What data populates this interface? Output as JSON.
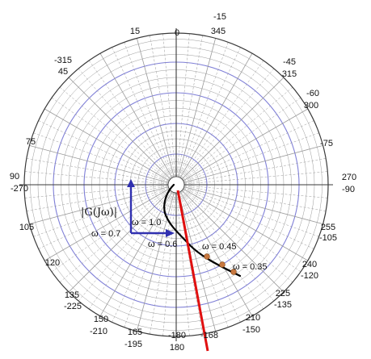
{
  "plot": {
    "angle_labels": [
      {
        "key": "0",
        "text": "0"
      },
      {
        "key": "15",
        "text": "15"
      },
      {
        "key": "n15",
        "text": "-15"
      },
      {
        "key": "345",
        "text": "345"
      },
      {
        "key": "n315",
        "text": "-315"
      },
      {
        "key": "45",
        "text": "45"
      },
      {
        "key": "n45",
        "text": "-45"
      },
      {
        "key": "315",
        "text": "315"
      },
      {
        "key": "n60",
        "text": "-60"
      },
      {
        "key": "300",
        "text": "300"
      },
      {
        "key": "75",
        "text": "75"
      },
      {
        "key": "n75",
        "text": "-75"
      },
      {
        "key": "90",
        "text": "90"
      },
      {
        "key": "n270",
        "text": "-270"
      },
      {
        "key": "270",
        "text": "270"
      },
      {
        "key": "n90",
        "text": "-90"
      },
      {
        "key": "105",
        "text": "105"
      },
      {
        "key": "255",
        "text": "255"
      },
      {
        "key": "n105",
        "text": "-105"
      },
      {
        "key": "120",
        "text": "120"
      },
      {
        "key": "240",
        "text": "240"
      },
      {
        "key": "n120",
        "text": "-120"
      },
      {
        "key": "135",
        "text": "135"
      },
      {
        "key": "n225",
        "text": "-225"
      },
      {
        "key": "225",
        "text": "225"
      },
      {
        "key": "n135",
        "text": "-135"
      },
      {
        "key": "150",
        "text": "150"
      },
      {
        "key": "n210",
        "text": "-210"
      },
      {
        "key": "210",
        "text": "210"
      },
      {
        "key": "n150",
        "text": "-150"
      },
      {
        "key": "165",
        "text": "165"
      },
      {
        "key": "n195",
        "text": "-195"
      },
      {
        "key": "n180",
        "text": "-180"
      },
      {
        "key": "180",
        "text": "180"
      },
      {
        "key": "n168",
        "text": "-168"
      }
    ],
    "magnitude_label": "|G(Jω)|",
    "omega_labels": [
      {
        "key": "w10",
        "text": "ω = 1.0"
      },
      {
        "key": "w07",
        "text": "ω = 0.7"
      },
      {
        "key": "w06",
        "text": "ω = 0.6"
      },
      {
        "key": "w045",
        "text": "ω = 0.45"
      },
      {
        "key": "w035",
        "text": "ω = 0.35"
      }
    ],
    "colors": {
      "background": "#ffffff",
      "major_grid": "#3a3a3a",
      "minor_grid": "#9a9a9a",
      "radial_grid": "#9a9a9a",
      "blue_circles": "#8080d8",
      "magnitude_arrow": "#3030b0",
      "locus": "#000000",
      "reference_line": "#e01010",
      "frequency_marker": "#c87840"
    }
  }
}
